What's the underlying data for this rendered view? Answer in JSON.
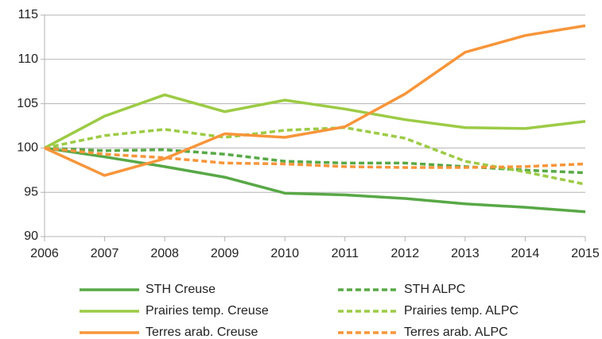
{
  "chart_data": {
    "type": "line",
    "x": [
      2006,
      2007,
      2008,
      2009,
      2010,
      2011,
      2012,
      2013,
      2014,
      2015
    ],
    "xlim": [
      2006,
      2015
    ],
    "xticks": [
      2006,
      2007,
      2008,
      2009,
      2010,
      2011,
      2012,
      2013,
      2014,
      2015
    ],
    "ylim": [
      90,
      115
    ],
    "yticks": [
      90,
      95,
      100,
      105,
      110,
      115
    ],
    "grid": true,
    "legend": "bottom",
    "series": [
      {
        "name": "STH Creuse",
        "color": "#58a846",
        "dashed": false,
        "values": [
          100,
          99.0,
          97.9,
          96.7,
          94.9,
          94.7,
          94.3,
          93.7,
          93.3,
          92.8
        ]
      },
      {
        "name": "STH ALPC",
        "color": "#58a846",
        "dashed": true,
        "values": [
          100,
          99.7,
          99.8,
          99.3,
          98.5,
          98.3,
          98.3,
          97.9,
          97.5,
          97.2
        ]
      },
      {
        "name": "Prairies temp. Creuse",
        "color": "#9ccb45",
        "dashed": false,
        "values": [
          100,
          103.6,
          106.0,
          104.1,
          105.4,
          104.4,
          103.2,
          102.3,
          102.2,
          103.0
        ]
      },
      {
        "name": "Prairies temp. ALPC",
        "color": "#9ccb45",
        "dashed": true,
        "values": [
          100,
          101.4,
          102.1,
          101.2,
          102.0,
          102.3,
          101.1,
          98.5,
          97.3,
          95.9
        ]
      },
      {
        "name": "Terres arab. Creuse",
        "color": "#f7953a",
        "dashed": false,
        "values": [
          100,
          96.9,
          98.8,
          101.6,
          101.2,
          102.4,
          106.1,
          110.8,
          112.7,
          113.8
        ]
      },
      {
        "name": "Terres arab. ALPC",
        "color": "#f7953a",
        "dashed": true,
        "values": [
          100,
          99.3,
          98.9,
          98.3,
          98.2,
          97.9,
          97.8,
          97.8,
          97.9,
          98.2
        ]
      }
    ]
  }
}
